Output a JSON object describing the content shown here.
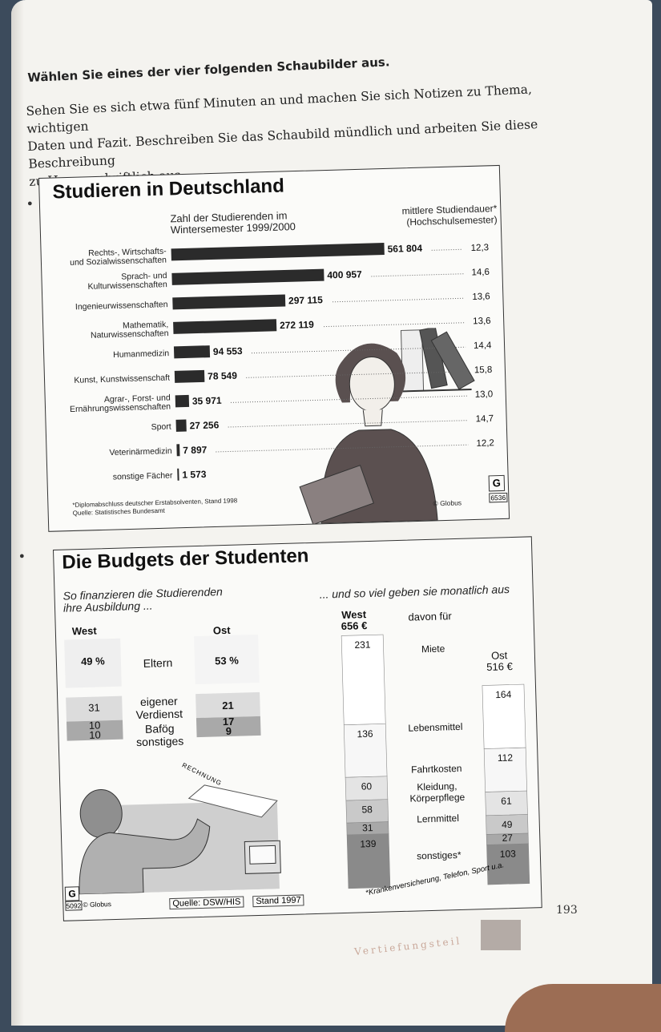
{
  "instructions": {
    "heading": "Wählen Sie eines der vier folgenden Schaubilder aus.",
    "line1": "Sehen Sie es sich etwa fünf Minuten an und machen Sie sich Notizen zu Thema, wichtigen",
    "line2": "Daten und Fazit. Beschreiben Sie das Schaubild mündlich und arbeiten Sie diese Beschreibung",
    "line3": "zu Hause schriftlich aus."
  },
  "chart1": {
    "marker": "●",
    "title": "Studieren in Deutschland",
    "subtitle_left_1": "Zahl der Studierenden im",
    "subtitle_left_2": "Wintersemester 1999/2000",
    "subtitle_right_1": "mittlere Studiendauer*",
    "subtitle_right_2": "(Hochschulsemester)",
    "footnote": "*Diplomabschluss deutscher Erstabsolventen, Stand 1998",
    "source": "Quelle: Statistisches Bundesamt",
    "credit": "© Globus",
    "logo": "G",
    "code": "6536",
    "colors": {
      "bar": "#2b2b2b",
      "dots": "#666666"
    }
  },
  "chart_data": [
    {
      "type": "bar",
      "orientation": "horizontal",
      "title": "Studieren in Deutschland",
      "categories": [
        [
          "Rechts-, Wirtschafts-",
          "und Sozialwissenschaften"
        ],
        [
          "Sprach- und",
          "Kulturwissenschaften"
        ],
        [
          "Ingenieurwissenschaften"
        ],
        [
          "Mathematik,",
          "Naturwissenschaften"
        ],
        [
          "Humanmedizin"
        ],
        [
          "Kunst, Kunstwissenschaft"
        ],
        [
          "Agrar-, Forst- und",
          "Ernährungswissenschaften"
        ],
        [
          "Sport"
        ],
        [
          "Veterinärmedizin"
        ],
        [
          "sonstige Fächer"
        ]
      ],
      "values": [
        561804,
        400957,
        297115,
        272119,
        94553,
        78549,
        35971,
        27256,
        7897,
        1573
      ],
      "value_labels": [
        "561 804",
        "400 957",
        "297 115",
        "272 119",
        "94 553",
        "78 549",
        "35 971",
        "27 256",
        "7 897",
        "1 573"
      ],
      "duration": [
        12.3,
        14.6,
        13.6,
        13.6,
        14.4,
        15.8,
        13.0,
        14.7,
        12.2,
        null
      ],
      "duration_labels": [
        "12,3",
        "14,6",
        "13,6",
        "13,6",
        "14,4",
        "15,8",
        "13,0",
        "14,7",
        "12,2",
        ""
      ],
      "xlim": [
        0,
        561804
      ]
    },
    {
      "type": "table",
      "title": "Die Budgets der Studenten",
      "subtitle": "So finanzieren die Studierenden ihre Ausbildung ...",
      "columns": [
        "West",
        "Ost"
      ],
      "rows": [
        {
          "label": "Eltern",
          "west": "49 %",
          "ost": "53 %"
        },
        {
          "label": "eigener Verdienst",
          "west": "31",
          "ost": "21"
        },
        {
          "label": "Bafög",
          "west": "10",
          "ost": "17"
        },
        {
          "label": "sonstiges",
          "west": "10",
          "ost": "9"
        }
      ]
    },
    {
      "type": "bar",
      "stacked": true,
      "title": "... und so viel geben sie monatlich aus",
      "categories": [
        "West",
        "Ost"
      ],
      "totals": [
        656,
        516
      ],
      "total_labels": [
        "656 €",
        "516 €"
      ],
      "series": [
        {
          "name": "Miete",
          "values": [
            231,
            164
          ]
        },
        {
          "name": "Lebensmittel",
          "values": [
            136,
            112
          ]
        },
        {
          "name": "Fahrtkosten",
          "values": [
            60,
            61
          ]
        },
        {
          "name": "Kleidung, Körperpflege",
          "values": [
            58,
            49
          ]
        },
        {
          "name": "Lernmittel",
          "values": [
            31,
            27
          ]
        },
        {
          "name": "sonstiges*",
          "values": [
            139,
            103
          ]
        }
      ]
    }
  ],
  "chart2": {
    "marker": "●",
    "title": "Die Budgets der Studenten",
    "left_sub_1": "So finanzieren die Studierenden",
    "left_sub_2": "ihre Ausbildung ...",
    "right_sub": "... und so viel geben sie monatlich aus",
    "col_west": "West",
    "col_ost": "Ost",
    "west_head": "West",
    "west_total": "656 €",
    "ost_head": "Ost",
    "ost_total": "516 €",
    "davon": "davon für",
    "row_eltern": {
      "label": "Eltern",
      "west": "49 %",
      "ost": "53 %"
    },
    "row_verdienst": {
      "label1": "eigener",
      "label2": "Verdienst",
      "west": "31",
      "ost": "21"
    },
    "row_bafoeg": {
      "label": "Bafög",
      "west": "10",
      "ost": "17"
    },
    "row_sonst": {
      "label": "sonstiges",
      "west": "10",
      "ost": "9"
    },
    "seg_labels": [
      "Miete",
      "Lebensmittel",
      "Fahrtkosten",
      "Kleidung,",
      "Körperpflege",
      "Lernmittel",
      "sonstiges*"
    ],
    "rechnung": "RECHNUNG",
    "source": "Quelle: DSW/HIS",
    "stand": "Stand 1997",
    "note": "*Krankenversicherung, Telefon, Sport u.a.",
    "credit": "© Globus",
    "logo": "G",
    "code": "5092"
  },
  "footer": {
    "page_number": "193",
    "section": "Vertiefungsteil"
  }
}
